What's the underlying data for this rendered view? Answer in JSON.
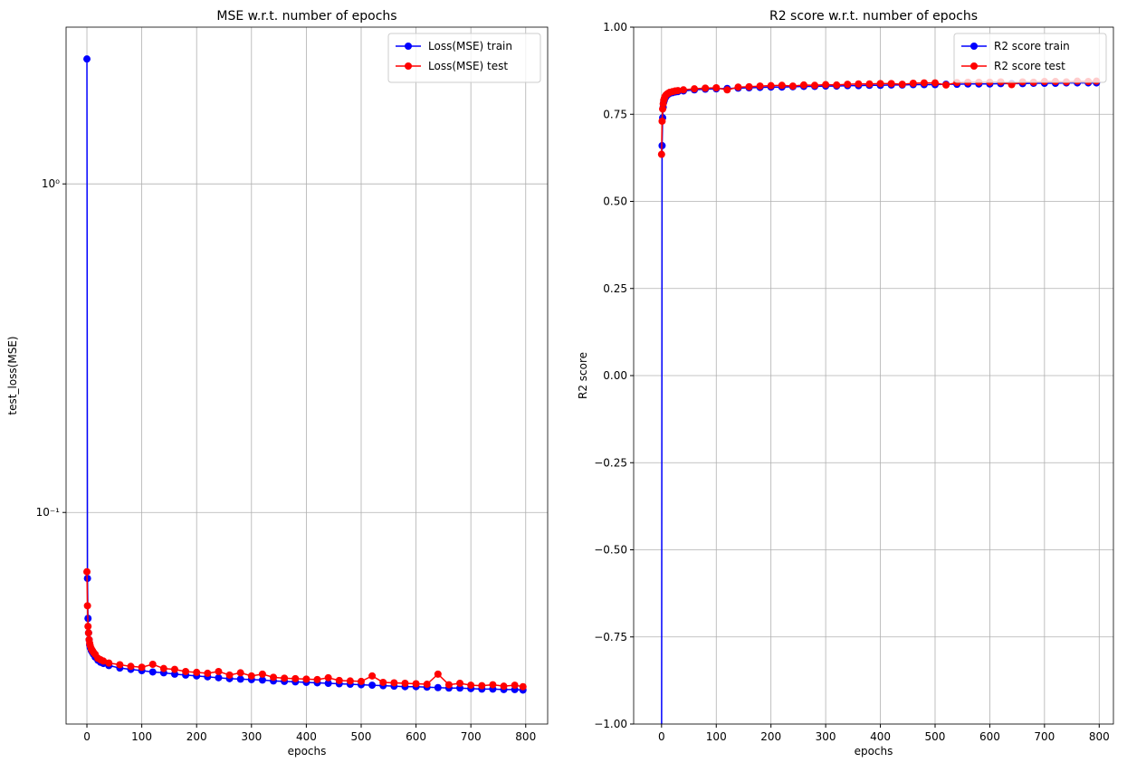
{
  "chart_data": [
    {
      "type": "line",
      "title": "MSE w.r.t. number of epochs",
      "xlabel": "epochs",
      "ylabel": "test_loss(MSE)",
      "yscale": "log",
      "grid": true,
      "legend": "upper right",
      "x": [
        0,
        1,
        2,
        3,
        4,
        5,
        6,
        8,
        10,
        12,
        15,
        20,
        25,
        30,
        40,
        60,
        80,
        100,
        120,
        140,
        160,
        180,
        200,
        220,
        240,
        260,
        280,
        300,
        320,
        340,
        360,
        380,
        400,
        420,
        440,
        460,
        480,
        500,
        520,
        540,
        560,
        580,
        600,
        620,
        640,
        660,
        680,
        700,
        720,
        740,
        760,
        780,
        795
      ],
      "xlim": [
        -38,
        840
      ],
      "xticks": [
        0,
        100,
        200,
        300,
        400,
        500,
        600,
        700,
        800
      ],
      "ylim": [
        0.0227,
        3.0
      ],
      "yticks": [
        {
          "value": 1,
          "label": "10⁰"
        },
        {
          "value": 0.1,
          "label": "10⁻¹"
        }
      ],
      "series": [
        {
          "name": "Loss(MSE) train",
          "color": "#0000ff",
          "values": [
            2.4,
            0.063,
            0.0476,
            0.043,
            0.041,
            0.0395,
            0.0388,
            0.038,
            0.0375,
            0.037,
            0.0363,
            0.0355,
            0.035,
            0.0347,
            0.0342,
            0.0336,
            0.0333,
            0.033,
            0.0327,
            0.0325,
            0.0322,
            0.032,
            0.0318,
            0.0316,
            0.0314,
            0.0312,
            0.0311,
            0.031,
            0.0309,
            0.0307,
            0.0306,
            0.0305,
            0.0304,
            0.0303,
            0.0302,
            0.0301,
            0.03,
            0.0299,
            0.0298,
            0.0297,
            0.0296,
            0.0295,
            0.0295,
            0.0294,
            0.0293,
            0.0292,
            0.0292,
            0.0291,
            0.029,
            0.029,
            0.0289,
            0.0289,
            0.0288
          ]
        },
        {
          "name": "Loss(MSE) test",
          "color": "#ff0000",
          "values": [
            0.066,
            0.052,
            0.045,
            0.043,
            0.041,
            0.04,
            0.0393,
            0.0385,
            0.038,
            0.0375,
            0.037,
            0.036,
            0.0356,
            0.0353,
            0.0348,
            0.0344,
            0.034,
            0.0338,
            0.0345,
            0.0335,
            0.0333,
            0.0328,
            0.0326,
            0.0324,
            0.0328,
            0.032,
            0.0325,
            0.0318,
            0.0322,
            0.0315,
            0.0313,
            0.0312,
            0.0311,
            0.031,
            0.0314,
            0.0308,
            0.0307,
            0.0306,
            0.0318,
            0.0304,
            0.0303,
            0.0302,
            0.0301,
            0.03,
            0.0322,
            0.0299,
            0.0302,
            0.0298,
            0.0297,
            0.0299,
            0.0296,
            0.0298,
            0.0295
          ]
        }
      ]
    },
    {
      "type": "line",
      "title": "R2 score w.r.t. number of epochs",
      "xlabel": "epochs",
      "ylabel": "R2 score",
      "grid": true,
      "legend": "upper right",
      "x": [
        0,
        1,
        2,
        3,
        4,
        5,
        6,
        8,
        10,
        12,
        15,
        20,
        25,
        30,
        40,
        60,
        80,
        100,
        120,
        140,
        160,
        180,
        200,
        220,
        240,
        260,
        280,
        300,
        320,
        340,
        360,
        380,
        400,
        420,
        440,
        460,
        480,
        500,
        520,
        540,
        560,
        580,
        600,
        620,
        640,
        660,
        680,
        700,
        720,
        740,
        760,
        780,
        795
      ],
      "xlim": [
        -51,
        826
      ],
      "xticks": [
        0,
        100,
        200,
        300,
        400,
        500,
        600,
        700,
        800
      ],
      "ylim": [
        -1,
        1
      ],
      "yticks": [
        {
          "value": -1,
          "label": "−1.00"
        },
        {
          "value": -0.75,
          "label": "−0.75"
        },
        {
          "value": -0.5,
          "label": "−0.50"
        },
        {
          "value": -0.25,
          "label": "−0.25"
        },
        {
          "value": 0,
          "label": "0.00"
        },
        {
          "value": 0.25,
          "label": "0.25"
        },
        {
          "value": 0.5,
          "label": "0.50"
        },
        {
          "value": 0.75,
          "label": "0.75"
        },
        {
          "value": 1,
          "label": "1.00"
        }
      ],
      "series": [
        {
          "name": "R2 score train",
          "color": "#0000ff",
          "values": [
            -1.2,
            0.66,
            0.74,
            0.77,
            0.785,
            0.79,
            0.795,
            0.8,
            0.805,
            0.807,
            0.81,
            0.812,
            0.814,
            0.815,
            0.817,
            0.82,
            0.822,
            0.823,
            0.824,
            0.825,
            0.826,
            0.827,
            0.828,
            0.828,
            0.829,
            0.83,
            0.83,
            0.831,
            0.831,
            0.832,
            0.832,
            0.833,
            0.833,
            0.834,
            0.834,
            0.835,
            0.835,
            0.835,
            0.836,
            0.836,
            0.837,
            0.837,
            0.837,
            0.838,
            0.838,
            0.838,
            0.839,
            0.839,
            0.839,
            0.84,
            0.84,
            0.84,
            0.84
          ]
        },
        {
          "name": "R2 score test",
          "color": "#ff0000",
          "values": [
            0.635,
            0.73,
            0.765,
            0.78,
            0.79,
            0.795,
            0.8,
            0.805,
            0.808,
            0.81,
            0.813,
            0.815,
            0.817,
            0.818,
            0.82,
            0.823,
            0.825,
            0.826,
            0.82,
            0.828,
            0.829,
            0.831,
            0.832,
            0.833,
            0.831,
            0.834,
            0.833,
            0.835,
            0.834,
            0.836,
            0.837,
            0.837,
            0.838,
            0.838,
            0.836,
            0.839,
            0.84,
            0.84,
            0.834,
            0.841,
            0.842,
            0.842,
            0.842,
            0.843,
            0.835,
            0.843,
            0.842,
            0.844,
            0.844,
            0.843,
            0.845,
            0.844,
            0.845
          ]
        }
      ]
    }
  ]
}
